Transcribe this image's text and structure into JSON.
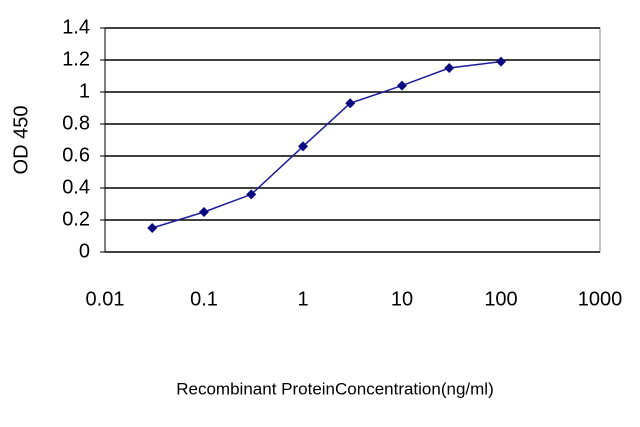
{
  "chart_data": {
    "type": "line",
    "xlabel": "Recombinant ProteinConcentration(ng/ml)",
    "ylabel": "OD 450",
    "x": [
      0.03,
      0.1,
      0.3,
      1,
      3,
      10,
      30,
      100
    ],
    "series": [
      {
        "color": "#1c1c9c",
        "values": [
          0.15,
          0.25,
          0.36,
          0.66,
          0.93,
          1.04,
          1.15,
          1.19
        ]
      }
    ],
    "xlog": true,
    "xlim": [
      0.01,
      1000
    ],
    "xticks": [
      0.01,
      0.1,
      1,
      10,
      100,
      1000
    ],
    "ylim": [
      0,
      1.4
    ],
    "yticks": [
      0,
      0.2,
      0.4,
      0.6,
      0.8,
      1,
      1.2,
      1.4
    ],
    "grid": true
  }
}
